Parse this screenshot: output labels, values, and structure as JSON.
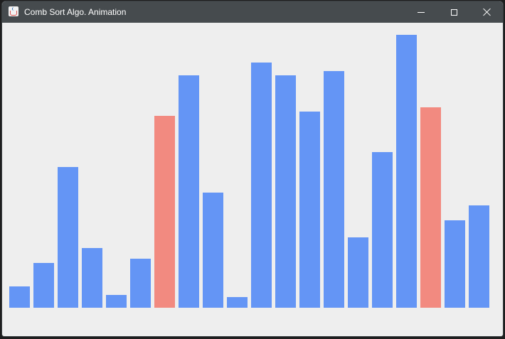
{
  "window": {
    "title": "Comb Sort Algo. Animation",
    "icon": "java-cup-icon"
  },
  "colors": {
    "default_bar": "#6495f5",
    "compared_bar": "#f28a80",
    "background": "#eeeeee",
    "titlebar": "#464b4e"
  },
  "chart_data": {
    "type": "bar",
    "values": [
      30,
      63,
      198,
      84,
      18,
      69,
      270,
      327,
      162,
      15,
      345,
      327,
      276,
      333,
      99,
      219,
      384,
      282,
      123,
      144
    ],
    "highlighted_indices": [
      6,
      17
    ],
    "ylim": [
      0,
      400
    ]
  }
}
